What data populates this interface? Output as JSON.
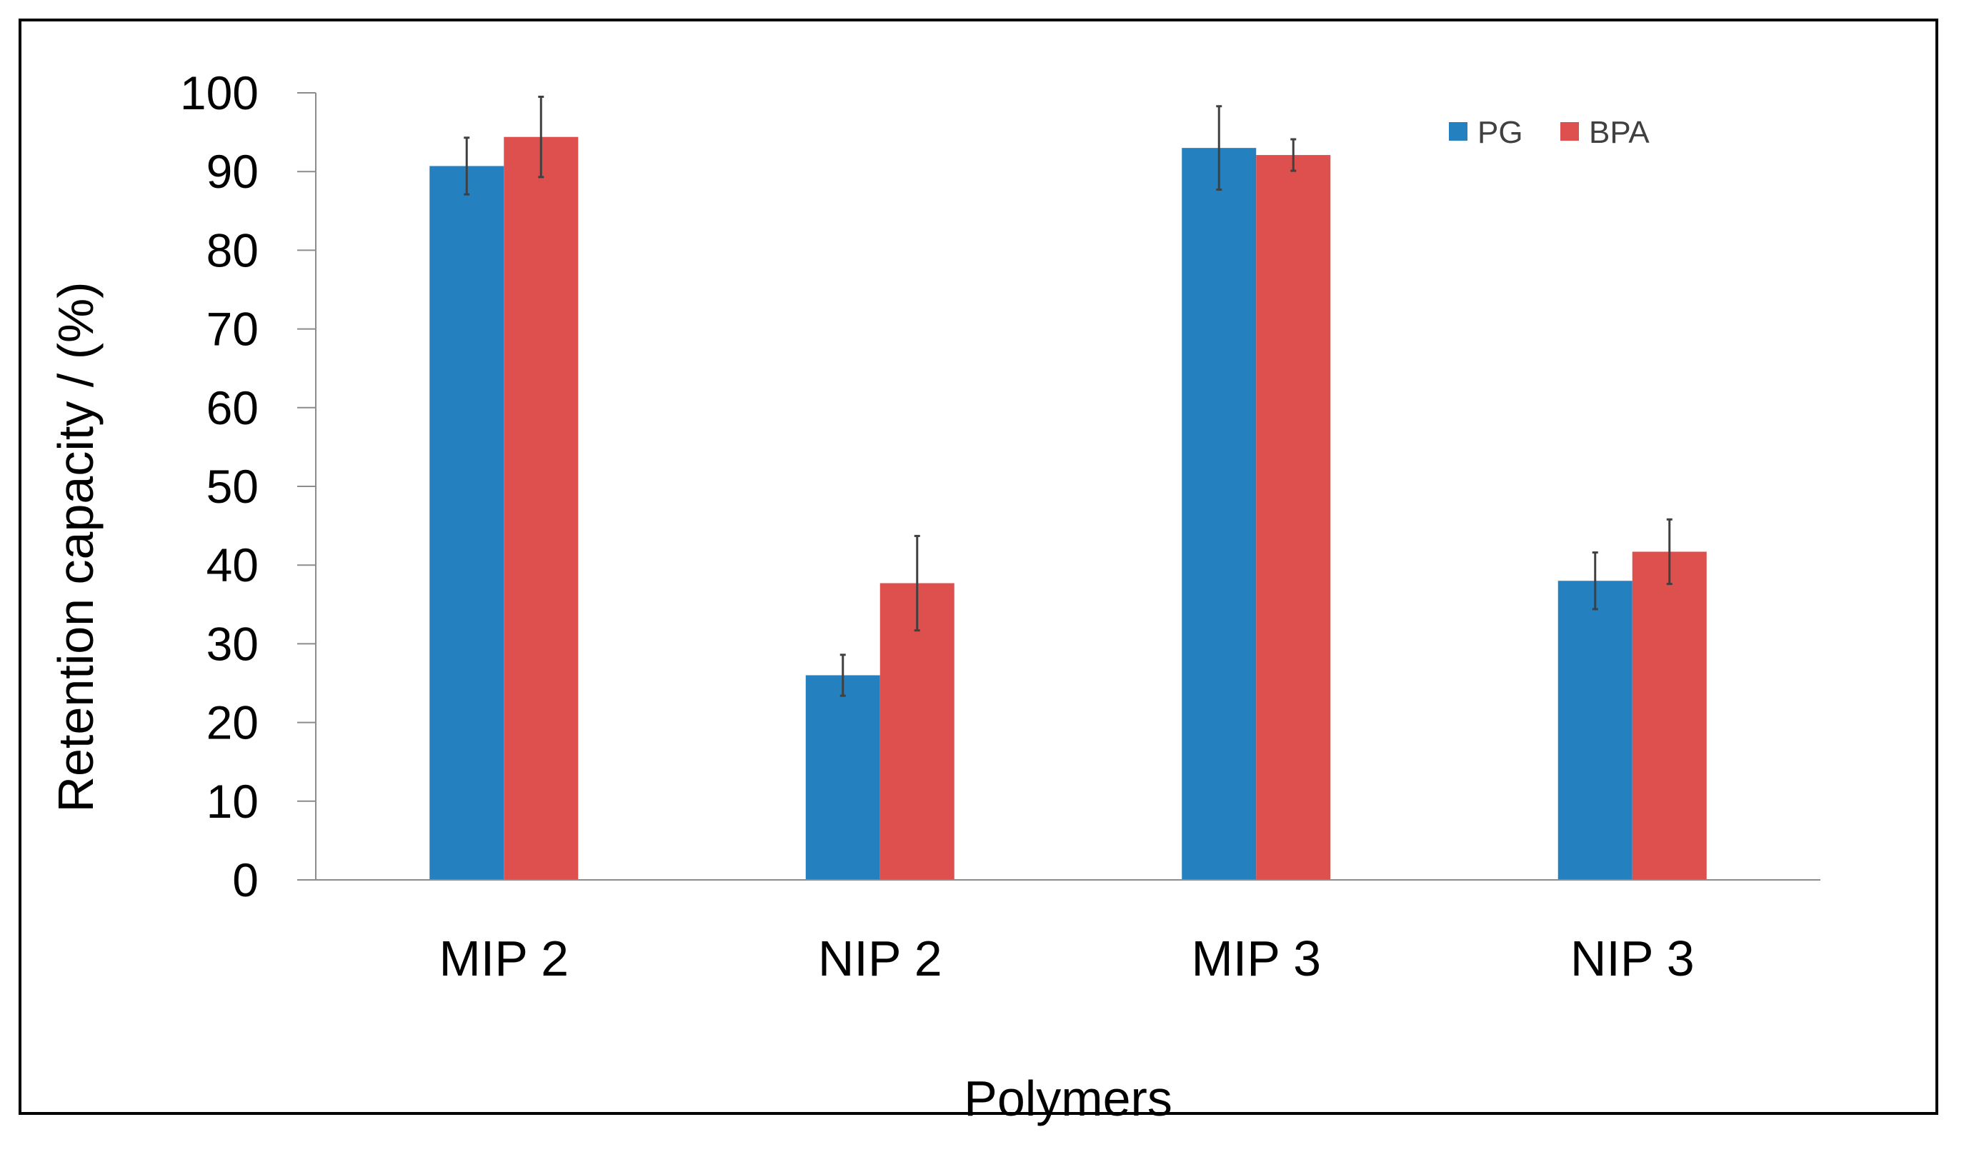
{
  "chart_data": {
    "type": "bar",
    "title": "",
    "xlabel": "Polymers",
    "ylabel": "Retention capacity / (%)",
    "ylim": [
      0,
      100
    ],
    "yticks": [
      0,
      10,
      20,
      30,
      40,
      50,
      60,
      70,
      80,
      90,
      100
    ],
    "categories": [
      "MIP 2",
      "NIP 2",
      "MIP 3",
      "NIP 3"
    ],
    "series": [
      {
        "name": "PG",
        "color": "#2580bf",
        "values": [
          90.7,
          26.0,
          93.0,
          38.0
        ],
        "errors": [
          3.6,
          2.6,
          5.3,
          3.6
        ]
      },
      {
        "name": "BPA",
        "color": "#de504e",
        "values": [
          94.4,
          37.7,
          92.1,
          41.7
        ],
        "errors": [
          5.1,
          6.0,
          2.0,
          4.1
        ]
      }
    ],
    "legend_position": "top-right",
    "grid": false
  }
}
